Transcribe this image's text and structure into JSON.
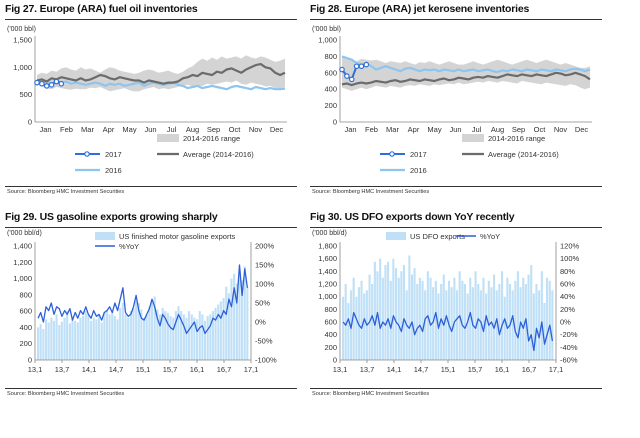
{
  "panels": [
    {
      "title": "Fig 27. Europe (ARA) fuel oil inventories",
      "source": "Source: Bloomberg HMC Investment Securities"
    },
    {
      "title": "Fig 28. Europe (ARA) jet kerosene inventories",
      "source": "Source: Bloomberg HMC Investment Securities"
    },
    {
      "title": "Fig 29. US gasoline exports growing sharply",
      "source": "Source: Bloomberg HMC Investment Securities"
    },
    {
      "title": "Fig 30. US DFO exports down YoY recently",
      "source": "Source: Bloomberg HMC Investment Securities"
    }
  ],
  "chart_data": [
    {
      "type": "line",
      "title": "Fig 27. Europe (ARA) fuel oil inventories",
      "unit_label": "('000 bbl)",
      "x_labels": [
        "Jan",
        "Feb",
        "Mar",
        "Apr",
        "May",
        "Jun",
        "Jul",
        "Aug",
        "Sep",
        "Oct",
        "Nov",
        "Dec"
      ],
      "yticks": [
        "0",
        "500",
        "1,000",
        "1,500"
      ],
      "ylim": [
        0,
        1500
      ],
      "legend_position": "bottom",
      "colors": {
        "range": "#d4d4d4",
        "y2017": "#2f6fd9",
        "avg": "#6b6b6b",
        "y2016": "#8fc4ee"
      },
      "series": [
        {
          "name": "2014-2016 range",
          "kind": "band",
          "low": [
            700,
            650,
            620,
            600,
            640,
            620,
            600,
            590,
            610,
            600,
            600,
            630,
            620,
            640,
            600,
            560,
            580,
            600,
            620,
            580,
            560,
            560,
            600,
            620,
            640,
            600,
            620,
            600,
            620,
            640,
            660,
            680,
            650,
            640,
            660,
            700,
            680,
            700,
            720,
            740,
            720,
            760,
            700,
            680,
            720,
            700,
            680,
            650,
            660,
            620,
            600,
            640
          ],
          "high": [
            860,
            900,
            880,
            940,
            920,
            980,
            1000,
            960,
            940,
            1000,
            960,
            980,
            940,
            900,
            960,
            1000,
            980,
            940,
            920,
            900,
            880,
            900,
            940,
            960,
            940,
            900,
            920,
            940,
            900,
            880,
            920,
            980,
            1020,
            1100,
            1160,
            1120,
            1180,
            1140,
            1200,
            1160,
            1180,
            1200,
            1160,
            1220,
            1180,
            1160,
            1200,
            1180,
            1140,
            1100,
            1120,
            1160
          ]
        },
        {
          "name": "2017",
          "kind": "line",
          "values": [
            720,
            700,
            660,
            680,
            740,
            700
          ]
        },
        {
          "name": "Average (2014-2016)",
          "kind": "line",
          "values": [
            760,
            780,
            740,
            800,
            780,
            820,
            800,
            780,
            760,
            800,
            760,
            780,
            820,
            860,
            840,
            800,
            780,
            820,
            800,
            780,
            760,
            760,
            720,
            760,
            740,
            720,
            700,
            720,
            720,
            740,
            800,
            820,
            860,
            840,
            900,
            880,
            860,
            920,
            900,
            960,
            980,
            940,
            900,
            960,
            1000,
            1040,
            1060,
            1000,
            980,
            900,
            860,
            900
          ]
        },
        {
          "name": "2016",
          "kind": "line",
          "values": [
            760,
            720,
            740,
            700,
            760,
            720,
            740,
            700,
            720,
            700,
            680,
            700,
            720,
            700,
            660,
            700,
            680,
            700,
            660,
            680,
            700,
            720,
            660,
            700,
            720,
            700,
            680,
            700,
            720,
            680,
            660,
            620,
            640,
            660,
            620,
            640,
            660,
            640,
            620,
            600,
            640,
            660,
            640,
            620,
            600,
            640,
            620,
            600,
            620,
            600,
            600,
            610
          ]
        }
      ]
    },
    {
      "type": "line",
      "title": "Fig 28. Europe (ARA) jet kerosene inventories",
      "unit_label": "('000 bbl)",
      "x_labels": [
        "Jan",
        "Feb",
        "Mar",
        "Apr",
        "May",
        "Jun",
        "Jul",
        "Aug",
        "Sep",
        "Oct",
        "Nov",
        "Dec"
      ],
      "yticks": [
        "0",
        "200",
        "400",
        "600",
        "800",
        "1,000"
      ],
      "ylim": [
        0,
        1000
      ],
      "legend_position": "bottom",
      "colors": {
        "range": "#d4d4d4",
        "y2017": "#2f6fd9",
        "avg": "#6b6b6b",
        "y2016": "#8fc4ee"
      },
      "series": [
        {
          "name": "2014-2016 range",
          "kind": "band",
          "low": [
            420,
            400,
            380,
            400,
            420,
            400,
            420,
            440,
            430,
            420,
            440,
            430,
            420,
            440,
            450,
            440,
            460,
            450,
            440,
            460,
            450,
            460,
            470,
            460,
            480,
            460,
            470,
            480,
            490,
            480,
            500,
            490,
            480,
            500,
            490,
            480,
            470,
            500,
            490,
            480,
            470,
            460,
            480,
            470,
            460,
            450,
            440,
            460,
            450,
            420,
            400,
            420
          ],
          "high": [
            800,
            780,
            760,
            740,
            770,
            760,
            750,
            760,
            740,
            720,
            740,
            730,
            720,
            740,
            720,
            700,
            730,
            720,
            740,
            720,
            700,
            720,
            740,
            720,
            700,
            700,
            720,
            740,
            720,
            700,
            720,
            740,
            760,
            740,
            720,
            700,
            720,
            740,
            760,
            740,
            720,
            740,
            760,
            740,
            720,
            700,
            720,
            700,
            680,
            660,
            660,
            680
          ]
        },
        {
          "name": "2017",
          "kind": "line",
          "values": [
            640,
            560,
            520,
            680,
            680,
            700
          ]
        },
        {
          "name": "Average (2014-2016)",
          "kind": "line",
          "values": [
            460,
            470,
            450,
            470,
            480,
            470,
            480,
            500,
            490,
            480,
            500,
            510,
            490,
            500,
            520,
            510,
            500,
            520,
            510,
            500,
            520,
            530,
            510,
            520,
            540,
            530,
            520,
            540,
            550,
            540,
            560,
            550,
            540,
            560,
            580,
            570,
            560,
            580,
            570,
            560,
            580,
            570,
            560,
            580,
            600,
            590,
            570,
            580,
            600,
            580,
            560,
            520
          ]
        },
        {
          "name": "2016",
          "kind": "line",
          "values": [
            800,
            780,
            760,
            720,
            700,
            720,
            680,
            640,
            660,
            680,
            660,
            640,
            620,
            650,
            660,
            640,
            620,
            640,
            630,
            640,
            620,
            640,
            630,
            620,
            640,
            620,
            630,
            640,
            620,
            630,
            640,
            620,
            610,
            630,
            620,
            640,
            630,
            620,
            640,
            630,
            620,
            640,
            630,
            620,
            640,
            630,
            620,
            640,
            650,
            640,
            620,
            640
          ]
        }
      ]
    },
    {
      "type": "bar",
      "title": "Fig 29. US gasoline exports growing sharply",
      "unit_label": "('000 bbl/d)",
      "x_labels": [
        "13,1",
        "13,7",
        "14,1",
        "14,7",
        "15,1",
        "15,7",
        "16,1",
        "16,7",
        "17,1"
      ],
      "yticks_left": [
        "0",
        "200",
        "400",
        "600",
        "800",
        "1,000",
        "1,200",
        "1,400"
      ],
      "yticks_right": [
        "-100%",
        "-50%",
        "0%",
        "50%",
        "100%",
        "150%",
        "200%"
      ],
      "ylim": [
        0,
        1400
      ],
      "y2lim": [
        -100,
        200
      ],
      "legend_position": "top",
      "colors": {
        "bars": "#bfe0f7",
        "line": "#2d5fd8"
      },
      "series": [
        {
          "name": "US finished motor gasoline exports",
          "kind": "bars",
          "axis": "left",
          "values": [
            400,
            440,
            380,
            500,
            460,
            520,
            480,
            560,
            430,
            470,
            520,
            600,
            450,
            500,
            480,
            460,
            520,
            540,
            600,
            560,
            480,
            520,
            500,
            560,
            460,
            580,
            620,
            560,
            600,
            540,
            500,
            640,
            700,
            560,
            520,
            600,
            640,
            720,
            700,
            620,
            520,
            560,
            660,
            740,
            780,
            620,
            560,
            640,
            600,
            580,
            540,
            520,
            600,
            660,
            600,
            560,
            520,
            600,
            560,
            520,
            500,
            600,
            560,
            480,
            540,
            560,
            600,
            640,
            680,
            720,
            760,
            900,
            820,
            1000,
            1060,
            940,
            1120,
            980,
            1150,
            900
          ]
        },
        {
          "name": "%YoY",
          "kind": "line",
          "axis": "right",
          "values": [
            10,
            25,
            0,
            40,
            30,
            50,
            20,
            40,
            35,
            15,
            30,
            20,
            35,
            5,
            25,
            10,
            30,
            20,
            40,
            20,
            10,
            30,
            15,
            20,
            5,
            25,
            30,
            40,
            25,
            50,
            30,
            60,
            90,
            25,
            15,
            20,
            40,
            70,
            30,
            10,
            5,
            20,
            35,
            60,
            40,
            10,
            -10,
            20,
            10,
            -5,
            -15,
            -20,
            0,
            20,
            5,
            -10,
            -30,
            -20,
            -10,
            0,
            -25,
            -15,
            -10,
            -30,
            -20,
            -10,
            10,
            5,
            20,
            10,
            30,
            20,
            60,
            40,
            90,
            50,
            150,
            70,
            140,
            90
          ]
        }
      ]
    },
    {
      "type": "bar",
      "title": "Fig 30. US DFO exports down YoY recently",
      "unit_label": "('000 bbl/d)",
      "x_labels": [
        "13,1",
        "13,7",
        "14,1",
        "14,7",
        "15,1",
        "15,7",
        "16,1",
        "16,7",
        "17,1"
      ],
      "yticks_left": [
        "0",
        "200",
        "400",
        "600",
        "800",
        "1,000",
        "1,200",
        "1,400",
        "1,600",
        "1,800"
      ],
      "yticks_right": [
        "-60%",
        "-40%",
        "-20%",
        "0%",
        "20%",
        "40%",
        "60%",
        "80%",
        "100%",
        "120%"
      ],
      "ylim": [
        0,
        1800
      ],
      "y2lim": [
        -60,
        120
      ],
      "legend_position": "top",
      "colors": {
        "bars": "#bfe0f7",
        "line": "#2d5fd8"
      },
      "series": [
        {
          "name": "US DFO exports",
          "kind": "bars",
          "axis": "left",
          "values": [
            1000,
            1200,
            900,
            1100,
            1300,
            1000,
            1150,
            1250,
            1050,
            1100,
            1350,
            1200,
            1550,
            1400,
            1600,
            1300,
            1500,
            1550,
            1250,
            1600,
            1450,
            1300,
            1400,
            1500,
            1100,
            1650,
            1350,
            1450,
            1200,
            1300,
            1250,
            1100,
            1400,
            1300,
            1150,
            1250,
            1050,
            1200,
            1350,
            1100,
            1250,
            1150,
            1300,
            1100,
            1400,
            1250,
            1200,
            1050,
            1300,
            1150,
            1400,
            1200,
            1100,
            1300,
            1050,
            1250,
            1150,
            1350,
            1100,
            1200,
            1400,
            1000,
            1300,
            1200,
            1100,
            1250,
            1400,
            1150,
            1300,
            1200,
            1350,
            1500,
            1050,
            1200,
            1100,
            1400,
            900,
            1300,
            1250,
            1100
          ]
        },
        {
          "name": "%YoY",
          "kind": "line",
          "axis": "right",
          "values": [
            0,
            -5,
            5,
            -10,
            15,
            5,
            -5,
            -10,
            5,
            -5,
            0,
            10,
            -5,
            15,
            -10,
            0,
            -5,
            5,
            -10,
            10,
            0,
            -5,
            -15,
            5,
            -5,
            -10,
            0,
            -20,
            -10,
            -5,
            -15,
            5,
            10,
            -5,
            0,
            15,
            -10,
            5,
            -5,
            10,
            -5,
            -15,
            0,
            5,
            10,
            -5,
            -10,
            0,
            15,
            -5,
            -10,
            5,
            0,
            -15,
            10,
            -5,
            0,
            -10,
            5,
            -20,
            -5,
            5,
            -10,
            -5,
            10,
            -15,
            -25,
            0,
            -10,
            5,
            -30,
            -20,
            -45,
            -10,
            -25,
            0,
            -35,
            -20,
            -5,
            -30
          ]
        }
      ]
    }
  ]
}
